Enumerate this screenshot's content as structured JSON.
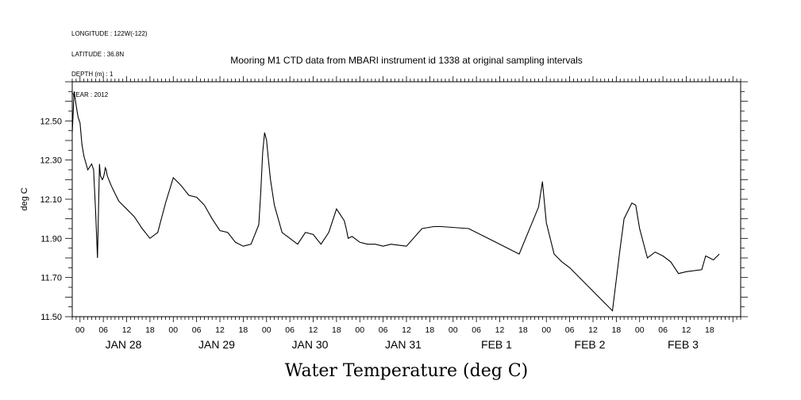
{
  "header_lines": [
    "LONGITUDE : 122W(-122)",
    "LATITUDE : 36.8N",
    "DEPTH (m) : 1",
    "YEAR : 2012"
  ],
  "chart_data": {
    "type": "line",
    "title": "Mooring M1 CTD data from MBARI instrument id 1338 at original sampling intervals",
    "xlabel": "Water Temperature (deg C)",
    "ylabel": "deg C",
    "ylim": [
      11.5,
      12.7
    ],
    "xlim": [
      "2012-01-27T22:00",
      "2012-02-04T02:00"
    ],
    "y_ticks": [
      "11.50",
      "11.70",
      "11.90",
      "12.10",
      "12.30",
      "12.50"
    ],
    "x_hour_ticks": [
      "00",
      "06",
      "12",
      "18",
      "00",
      "06",
      "12",
      "18",
      "00",
      "06",
      "12",
      "18",
      "00",
      "06",
      "12",
      "18",
      "00",
      "06",
      "12",
      "18",
      "00",
      "06",
      "12",
      "18",
      "00",
      "06",
      "12",
      "18"
    ],
    "x_day_labels": [
      "JAN 28",
      "JAN 29",
      "JAN 30",
      "JAN 31",
      "FEB  1",
      "FEB  2",
      "FEB  3"
    ],
    "grid": false,
    "series": [
      {
        "x": [
          "2012-01-27T22:00",
          "2012-01-27T22:30",
          "2012-01-27T23:00",
          "2012-01-27T23:30",
          "2012-01-28T00:00",
          "2012-01-28T00:30",
          "2012-01-28T01:00",
          "2012-01-28T02:00",
          "2012-01-28T03:00",
          "2012-01-28T03:30",
          "2012-01-28T04:00",
          "2012-01-28T04:30",
          "2012-01-28T05:00",
          "2012-01-28T05:15",
          "2012-01-28T05:30",
          "2012-01-28T05:45",
          "2012-01-28T06:00",
          "2012-01-28T06:15",
          "2012-01-28T06:30",
          "2012-01-28T06:45",
          "2012-01-28T07:00",
          "2012-01-28T08:00",
          "2012-01-28T09:00",
          "2012-01-28T10:00",
          "2012-01-28T12:00",
          "2012-01-28T14:00",
          "2012-01-28T16:00",
          "2012-01-28T18:00",
          "2012-01-28T20:00",
          "2012-01-28T22:00",
          "2012-01-29T00:00",
          "2012-01-29T02:00",
          "2012-01-29T04:00",
          "2012-01-29T06:00",
          "2012-01-29T08:00",
          "2012-01-29T10:00",
          "2012-01-29T12:00",
          "2012-01-29T14:00",
          "2012-01-29T16:00",
          "2012-01-29T18:00",
          "2012-01-29T20:00",
          "2012-01-29T22:00",
          "2012-01-29T22:30",
          "2012-01-29T23:00",
          "2012-01-29T23:30",
          "2012-01-30T00:00",
          "2012-01-30T00:30",
          "2012-01-30T01:00",
          "2012-01-30T02:00",
          "2012-01-30T04:00",
          "2012-01-30T06:00",
          "2012-01-30T08:00",
          "2012-01-30T10:00",
          "2012-01-30T12:00",
          "2012-01-30T14:00",
          "2012-01-30T16:00",
          "2012-01-30T18:00",
          "2012-01-30T20:00",
          "2012-01-30T20:30",
          "2012-01-30T21:00",
          "2012-01-30T22:00",
          "2012-01-31T00:00",
          "2012-01-31T02:00",
          "2012-01-31T04:00",
          "2012-01-31T06:00",
          "2012-01-31T08:00",
          "2012-01-31T12:00",
          "2012-01-31T16:00",
          "2012-01-31T19:00",
          "2012-01-31T21:00",
          "2012-02-01T04:00",
          "2012-02-01T10:00",
          "2012-02-01T17:00",
          "2012-02-01T22:00",
          "2012-02-01T23:00",
          "2012-02-02T00:00",
          "2012-02-02T02:00",
          "2012-02-02T04:00",
          "2012-02-02T06:00",
          "2012-02-02T17:00",
          "2012-02-02T19:00",
          "2012-02-02T20:00",
          "2012-02-02T22:00",
          "2012-02-02T23:00",
          "2012-02-03T00:00",
          "2012-02-03T02:00",
          "2012-02-03T04:00",
          "2012-02-03T06:00",
          "2012-02-03T08:00",
          "2012-02-03T10:00",
          "2012-02-03T12:00",
          "2012-02-03T16:00",
          "2012-02-03T17:00",
          "2012-02-03T19:00",
          "2012-02-03T20:30"
        ],
        "y": [
          12.44,
          12.65,
          12.58,
          12.52,
          12.49,
          12.38,
          12.32,
          12.25,
          12.28,
          12.25,
          12.04,
          11.8,
          12.28,
          12.22,
          12.21,
          12.2,
          12.21,
          12.23,
          12.26,
          12.25,
          12.22,
          12.17,
          12.13,
          12.09,
          12.05,
          12.01,
          11.95,
          11.9,
          11.93,
          12.08,
          12.21,
          12.17,
          12.12,
          12.11,
          12.07,
          12.0,
          11.94,
          11.93,
          11.88,
          11.86,
          11.87,
          11.97,
          12.13,
          12.34,
          12.44,
          12.4,
          12.3,
          12.2,
          12.07,
          11.93,
          11.9,
          11.87,
          11.93,
          11.92,
          11.87,
          11.93,
          12.05,
          11.99,
          11.95,
          11.9,
          11.91,
          11.88,
          11.87,
          11.87,
          11.86,
          11.87,
          11.86,
          11.95,
          11.96,
          11.96,
          11.95,
          11.89,
          11.82,
          12.06,
          12.19,
          11.98,
          11.82,
          11.78,
          11.75,
          11.53,
          11.85,
          12.0,
          12.08,
          12.07,
          11.95,
          11.8,
          11.83,
          11.81,
          11.78,
          11.72,
          11.73,
          11.74,
          11.81,
          11.79,
          11.82
        ]
      }
    ]
  }
}
